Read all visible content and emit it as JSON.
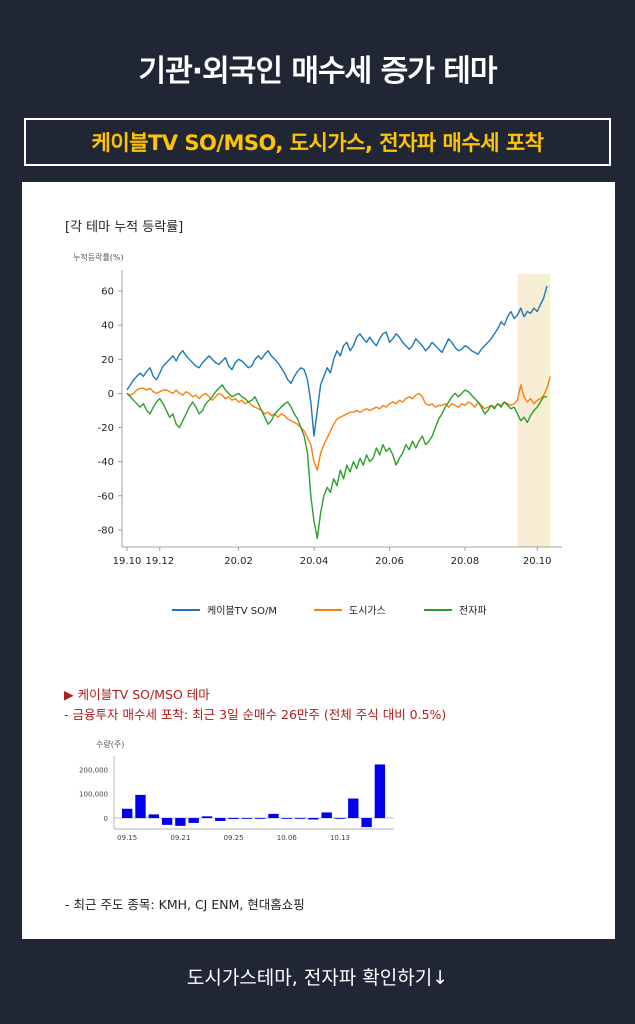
{
  "header": {
    "title": "기관·외국인 매수세 증가 테마",
    "subtitle": "케이블TV SO/MSO, 도시가스, 전자파 매수세 포착"
  },
  "chart_data": [
    {
      "type": "line",
      "title": "[각 테마 누적 등락률]",
      "ylabel": "누적등락률(%)",
      "ylim": [
        -90,
        70
      ],
      "yticks": [
        60,
        40,
        20,
        0,
        -20,
        -40,
        -60,
        -80
      ],
      "xticks": [
        "19.10",
        "19.12",
        "20.02",
        "20.04",
        "20.06",
        "20.08",
        "20.10"
      ],
      "xtick_index": [
        0,
        10,
        34,
        57,
        80,
        103,
        125
      ],
      "highlight_index": [
        119,
        129
      ],
      "series": [
        {
          "name": "케이블TV SO/M",
          "color": "#1f77b4",
          "values": [
            2,
            5,
            8,
            10,
            12,
            10,
            13,
            15,
            10,
            8,
            12,
            16,
            18,
            20,
            22,
            19,
            23,
            25,
            22,
            20,
            18,
            16,
            15,
            18,
            20,
            22,
            20,
            18,
            17,
            19,
            21,
            16,
            14,
            18,
            20,
            19,
            17,
            15,
            16,
            20,
            22,
            20,
            23,
            25,
            22,
            20,
            18,
            15,
            12,
            8,
            6,
            10,
            13,
            15,
            14,
            8,
            -5,
            -25,
            -10,
            5,
            10,
            15,
            12,
            20,
            25,
            22,
            28,
            30,
            25,
            28,
            33,
            35,
            32,
            30,
            33,
            30,
            28,
            32,
            35,
            36,
            30,
            32,
            35,
            33,
            30,
            28,
            26,
            28,
            32,
            30,
            28,
            25,
            27,
            30,
            28,
            26,
            24,
            28,
            32,
            30,
            27,
            25,
            26,
            28,
            27,
            25,
            24,
            23,
            26,
            28,
            30,
            32,
            35,
            38,
            42,
            40,
            45,
            48,
            44,
            46,
            50,
            45,
            48,
            47,
            50,
            48,
            52,
            56,
            63
          ]
        },
        {
          "name": "도시가스",
          "color": "#ff7f0e",
          "values": [
            0,
            -1,
            0,
            2,
            3,
            3,
            2,
            3,
            1,
            0,
            1,
            2,
            2,
            1,
            0,
            2,
            0,
            -1,
            1,
            0,
            -2,
            -1,
            -3,
            -1,
            0,
            -2,
            -4,
            -2,
            0,
            -1,
            -3,
            -2,
            -4,
            -3,
            -5,
            -4,
            -6,
            -5,
            -7,
            -8,
            -9,
            -10,
            -12,
            -11,
            -13,
            -12,
            -14,
            -12,
            -13,
            -15,
            -16,
            -17,
            -18,
            -20,
            -22,
            -26,
            -30,
            -40,
            -45,
            -35,
            -30,
            -26,
            -22,
            -18,
            -15,
            -14,
            -13,
            -12,
            -11,
            -11,
            -10,
            -11,
            -10,
            -9,
            -10,
            -9,
            -8,
            -9,
            -7,
            -8,
            -6,
            -5,
            -6,
            -4,
            -5,
            -3,
            -2,
            -3,
            -1,
            0,
            -2,
            -6,
            -7,
            -6,
            -8,
            -7,
            -7,
            -6,
            -8,
            -6,
            -7,
            -8,
            -6,
            -7,
            -5,
            -6,
            -8,
            -5,
            -7,
            -9,
            -8,
            -7,
            -8,
            -6,
            -7,
            -5,
            -6,
            -7,
            -6,
            -4,
            5,
            -2,
            -5,
            -3,
            -6,
            -4,
            -3,
            -1,
            3,
            10
          ]
        },
        {
          "name": "전자파",
          "color": "#2ca02c",
          "values": [
            0,
            -2,
            -4,
            -6,
            -8,
            -6,
            -10,
            -12,
            -8,
            -5,
            -3,
            -6,
            -10,
            -14,
            -12,
            -18,
            -20,
            -16,
            -12,
            -8,
            -5,
            -8,
            -12,
            -10,
            -6,
            -4,
            -2,
            1,
            3,
            5,
            2,
            0,
            -2,
            -1,
            0,
            -2,
            -3,
            -5,
            -4,
            -2,
            -6,
            -10,
            -14,
            -18,
            -16,
            -12,
            -10,
            -8,
            -6,
            -5,
            -8,
            -12,
            -15,
            -20,
            -25,
            -35,
            -60,
            -75,
            -85,
            -70,
            -60,
            -55,
            -58,
            -50,
            -54,
            -45,
            -50,
            -42,
            -46,
            -40,
            -44,
            -38,
            -42,
            -36,
            -40,
            -38,
            -32,
            -36,
            -30,
            -34,
            -32,
            -36,
            -42,
            -38,
            -35,
            -30,
            -33,
            -28,
            -32,
            -28,
            -25,
            -30,
            -28,
            -25,
            -20,
            -15,
            -12,
            -8,
            -5,
            -2,
            0,
            -2,
            0,
            2,
            1,
            -1,
            -3,
            -5,
            -8,
            -12,
            -10,
            -7,
            -9,
            -6,
            -8,
            -5,
            -7,
            -9,
            -8,
            -12,
            -16,
            -14,
            -17,
            -13,
            -10,
            -8,
            -5,
            -2,
            -2
          ]
        }
      ]
    },
    {
      "type": "bar",
      "ylabel": "수량(주)",
      "ylim": [
        -45000,
        230000
      ],
      "yticks": [
        200000,
        100000,
        0
      ],
      "yticklabels": [
        "200,000",
        "100,000",
        "0"
      ],
      "xticks": [
        "09.15",
        "09.21",
        "09.25",
        "10.06",
        "10.13"
      ],
      "xtick_index": [
        0,
        4,
        8,
        12,
        16
      ],
      "color": "#0000ee",
      "values": [
        38000,
        95000,
        15000,
        -28000,
        -32000,
        -20000,
        7000,
        -12000,
        -4000,
        -3000,
        -1000,
        17000,
        -1000,
        -1000,
        -6000,
        23000,
        0,
        80000,
        -37000,
        220000
      ]
    }
  ],
  "theme": {
    "heading": "▶ 케이블TV SO/MSO 테마",
    "detail": "- 금융투자 매수세 포착: 최근 3일 순매수 26만주 (전체 주식 대비 0.5%)",
    "leaders": "- 최근 주도 종목: KMH, CJ ENM, 현대홈쇼핑"
  },
  "footer": {
    "link_text": "도시가스테마, 전자파 확인하기↓"
  }
}
